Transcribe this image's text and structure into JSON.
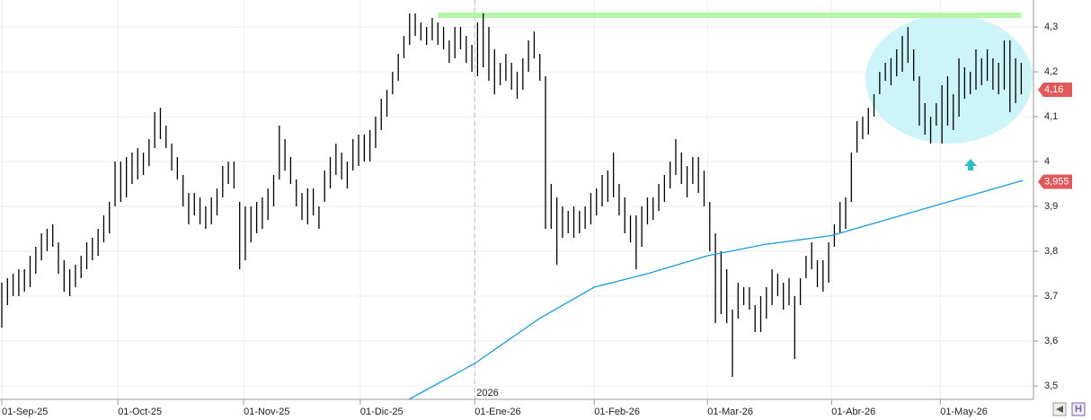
{
  "chart_data": {
    "type": "range-bar",
    "color": "#000000",
    "high": [
      3.73,
      3.74,
      3.75,
      3.76,
      3.76,
      3.79,
      3.81,
      3.84,
      3.85,
      3.86,
      3.82,
      3.78,
      3.76,
      3.77,
      3.79,
      3.82,
      3.83,
      3.85,
      3.88,
      3.91,
      4.0,
      4.0,
      4.01,
      4.02,
      4.03,
      4.02,
      4.05,
      4.11,
      4.12,
      4.08,
      4.04,
      4.01,
      3.97,
      3.93,
      3.93,
      3.92,
      3.9,
      3.92,
      3.94,
      3.99,
      4.0,
      4.0,
      3.91,
      3.9,
      3.9,
      3.91,
      3.92,
      3.94,
      3.97,
      4.08,
      4.05,
      4.01,
      3.96,
      3.93,
      3.94,
      3.94,
      3.9,
      3.98,
      4.01,
      4.04,
      4.02,
      4.0,
      4.05,
      4.06,
      4.06,
      4.07,
      4.1,
      4.14,
      4.16,
      4.2,
      4.24,
      4.28,
      4.33,
      4.33,
      4.31,
      4.3,
      4.32,
      4.31,
      4.3,
      4.27,
      4.3,
      4.3,
      4.28,
      4.26,
      4.31,
      4.33,
      4.3,
      4.25,
      4.22,
      4.24,
      4.22,
      4.2,
      4.23,
      4.27,
      4.29,
      4.24,
      4.19,
      3.95,
      3.92,
      3.9,
      3.89,
      3.9,
      3.89,
      3.9,
      3.93,
      3.94,
      3.97,
      3.98,
      4.02,
      3.95,
      3.92,
      3.88,
      3.88,
      3.9,
      3.92,
      3.92,
      3.95,
      3.97,
      4.0,
      4.05,
      4.02,
      3.99,
      4.01,
      4.01,
      3.98,
      3.91,
      3.84,
      3.8,
      3.76,
      3.67,
      3.73,
      3.72,
      3.72,
      3.68,
      3.7,
      3.72,
      3.76,
      3.75,
      3.73,
      3.74,
      3.7,
      3.74,
      3.79,
      3.82,
      3.78,
      3.78,
      3.82,
      3.86,
      3.91,
      3.92,
      4.02,
      4.09,
      4.1,
      4.12,
      4.15,
      4.2,
      4.22,
      4.23,
      4.25,
      4.28,
      4.3,
      4.25,
      4.19,
      4.13,
      4.1,
      4.13,
      4.17,
      4.19,
      4.15,
      4.23,
      4.21,
      4.2,
      4.25,
      4.23,
      4.25,
      4.23,
      4.22,
      4.27,
      4.27,
      4.23,
      4.22
    ],
    "low": [
      3.63,
      3.68,
      3.7,
      3.7,
      3.71,
      3.72,
      3.75,
      3.78,
      3.8,
      3.81,
      3.75,
      3.71,
      3.7,
      3.72,
      3.74,
      3.76,
      3.78,
      3.79,
      3.82,
      3.84,
      3.9,
      3.91,
      3.92,
      3.95,
      3.96,
      3.97,
      3.99,
      4.03,
      4.05,
      4.03,
      3.98,
      3.96,
      3.9,
      3.86,
      3.88,
      3.86,
      3.85,
      3.86,
      3.88,
      3.92,
      3.95,
      3.94,
      3.76,
      3.78,
      3.82,
      3.84,
      3.85,
      3.87,
      3.9,
      3.96,
      3.98,
      3.95,
      3.9,
      3.87,
      3.86,
      3.88,
      3.85,
      3.91,
      3.94,
      3.97,
      3.96,
      3.94,
      3.98,
      3.99,
      4.0,
      4.0,
      4.03,
      4.07,
      4.1,
      4.15,
      4.18,
      4.23,
      4.26,
      4.28,
      4.27,
      4.26,
      4.27,
      4.26,
      4.25,
      4.22,
      4.23,
      4.25,
      4.22,
      4.2,
      4.19,
      4.21,
      4.18,
      4.15,
      4.17,
      4.18,
      4.16,
      4.14,
      4.16,
      4.2,
      4.23,
      4.18,
      3.85,
      3.85,
      3.77,
      3.83,
      3.84,
      3.83,
      3.84,
      3.85,
      3.86,
      3.88,
      3.9,
      3.91,
      3.92,
      3.88,
      3.84,
      3.82,
      3.76,
      3.81,
      3.86,
      3.87,
      3.89,
      3.91,
      3.94,
      3.97,
      3.95,
      3.92,
      3.95,
      3.93,
      3.9,
      3.8,
      3.64,
      3.66,
      3.64,
      3.52,
      3.65,
      3.68,
      3.67,
      3.62,
      3.62,
      3.65,
      3.68,
      3.7,
      3.67,
      3.68,
      3.56,
      3.68,
      3.74,
      3.76,
      3.72,
      3.71,
      3.73,
      3.81,
      3.84,
      3.85,
      3.91,
      4.02,
      4.05,
      4.06,
      4.1,
      4.15,
      4.18,
      4.17,
      4.19,
      4.2,
      4.22,
      4.18,
      4.08,
      4.06,
      4.04,
      4.08,
      4.04,
      4.08,
      4.07,
      4.1,
      4.14,
      4.15,
      4.16,
      4.17,
      4.18,
      4.16,
      4.15,
      4.16,
      4.11,
      4.13,
      4.15
    ],
    "average": {
      "color": "#1a9bd7",
      "x": [
        71.9,
        83.5,
        94.9,
        104.6,
        114,
        124.6,
        134.6,
        146.5,
        165.7,
        180.3
      ],
      "values": [
        3.47,
        3.55,
        3.65,
        3.72,
        3.75,
        3.79,
        3.815,
        3.835,
        3.905,
        3.958
      ]
    },
    "level": {
      "value": 4.326,
      "from": 77,
      "to": 180,
      "color": "#b5f5a8"
    },
    "price_labels": [
      {
        "value": 4.16,
        "label": "4,16"
      },
      {
        "value": 3.955,
        "label": "3,955"
      }
    ],
    "year_marker": {
      "x": 83.5,
      "label": "2026"
    },
    "xlim": [
      0,
      182
    ],
    "ylim": [
      3.47,
      4.36
    ],
    "xticks": [
      {
        "value": 0,
        "label": "01-Sep-25"
      },
      {
        "value": 20.5,
        "label": "01-Oct-25"
      },
      {
        "value": 42.7,
        "label": "01-Nov-25"
      },
      {
        "value": 63.3,
        "label": "01-Dic-25"
      },
      {
        "value": 83.5,
        "label": "01-Ene-26"
      },
      {
        "value": 104.6,
        "label": "01-Feb-26"
      },
      {
        "value": 124.6,
        "label": "01-Mar-26"
      },
      {
        "value": 146.5,
        "label": "01-Abr-26"
      },
      {
        "value": 165.7,
        "label": "01-May-26"
      }
    ],
    "yticks": [
      {
        "value": 3.5,
        "label": "3,5"
      },
      {
        "value": 3.6,
        "label": "3,6"
      },
      {
        "value": 3.7,
        "label": "3,7"
      },
      {
        "value": 3.8,
        "label": "3,8"
      },
      {
        "value": 3.9,
        "label": "3,9"
      },
      {
        "value": 4,
        "label": "4"
      },
      {
        "value": 4.1,
        "label": "4,1"
      },
      {
        "value": 4.2,
        "label": "4,2"
      },
      {
        "value": 4.3,
        "label": "4,3"
      }
    ],
    "grid": true,
    "label_color": "#e05a5a"
  }
}
